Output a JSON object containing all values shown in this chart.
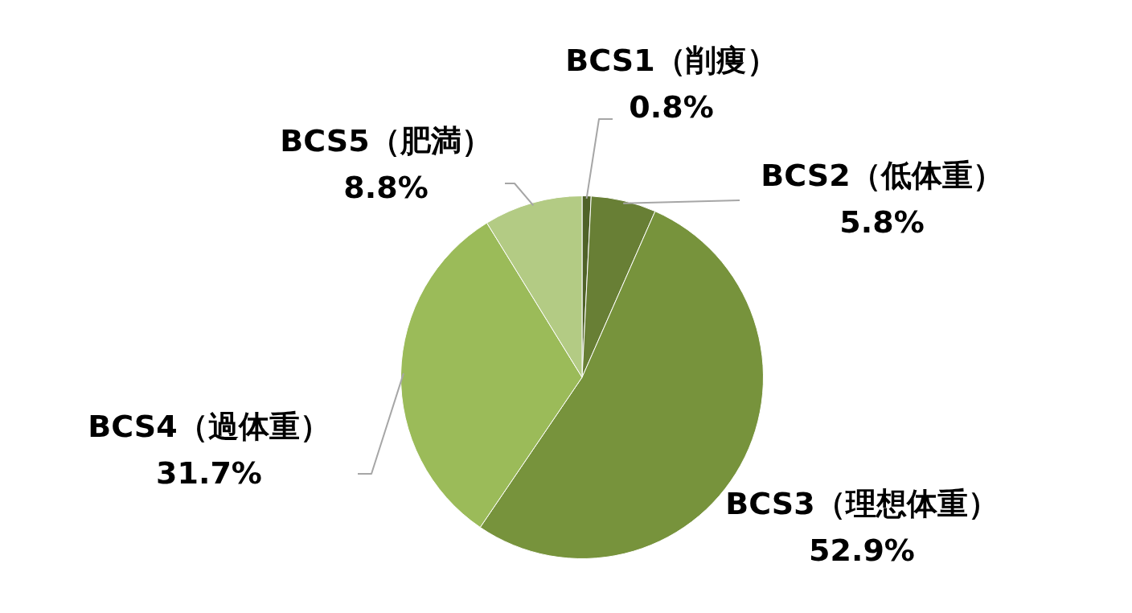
{
  "chart_data": {
    "type": "pie",
    "categories": [
      "BCS1（削痩）",
      "BCS2（低体重）",
      "BCS3（理想体重）",
      "BCS4（過体重）",
      "BCS5（肥満）"
    ],
    "values": [
      0.8,
      5.8,
      52.9,
      31.7,
      8.8
    ],
    "colors": [
      "#4f6228",
      "#687f35",
      "#77933c",
      "#9bbb59",
      "#b3cb84"
    ],
    "value_labels": [
      "0.8%",
      "5.8%",
      "52.9%",
      "31.7%",
      "8.8%"
    ],
    "legend": false
  }
}
